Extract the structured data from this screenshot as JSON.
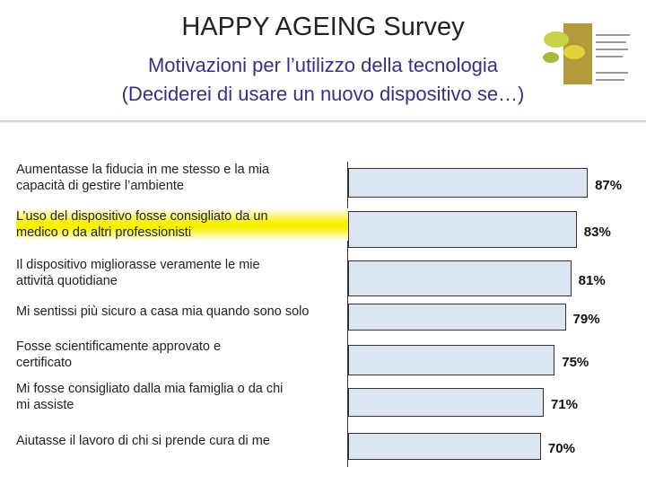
{
  "chart_data": {
    "type": "bar",
    "orientation": "horizontal",
    "title": "HAPPY AGEING Survey",
    "subtitle": [
      "Motivazioni per l’utilizzo della tecnologia",
      "(Deciderei di usare un nuovo dispositivo se…)"
    ],
    "categories": [
      "Aumentasse la fiducia in me stesso e la mia\ncapacità di gestire l’ambiente",
      "L’uso del dispositivo fosse consigliato da un\nmedico o da altri professionisti",
      "Il dispositivo migliorasse veramente le mie\nattività quotidiane",
      "Mi sentissi più sicuro a casa mia quando sono solo",
      "Fosse scientificamente approvato e\ncertificato",
      "Mi fosse consigliato dalla mia famiglia o da chi\nmi assiste",
      "Aiutasse il lavoro di chi si prende cura di me"
    ],
    "values": [
      87,
      83,
      81,
      79,
      75,
      71,
      70
    ],
    "value_labels": [
      "87%",
      "83%",
      "81%",
      "79%",
      "75%",
      "71%",
      "70%"
    ],
    "xlim": [
      0,
      100
    ],
    "color": "#dce6f2",
    "highlight": 1
  }
}
